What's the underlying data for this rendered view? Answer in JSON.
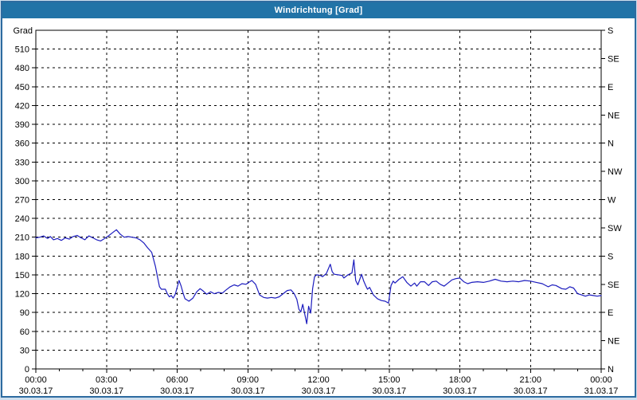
{
  "window": {
    "title": "Windrichtung [Grad]",
    "titlebar_color": "#2173a7",
    "border_color": "#2d6ba0"
  },
  "chart_data": {
    "type": "line",
    "title": "Windrichtung [Grad]",
    "grid": "dashed",
    "legend": "none",
    "y_left": {
      "label": "Grad",
      "min": 0,
      "max": 540,
      "tick_step": 30,
      "tick_labels": [
        "0",
        "30",
        "60",
        "90",
        "120",
        "150",
        "180",
        "210",
        "240",
        "270",
        "300",
        "330",
        "360",
        "390",
        "420",
        "450",
        "480",
        "510"
      ]
    },
    "y_right": {
      "tick_step": 45,
      "tick_labels_top_to_bottom": [
        "S",
        "SE",
        "E",
        "NE",
        "N",
        "NW",
        "W",
        "SW",
        "S",
        "SE",
        "E",
        "NE",
        "N"
      ]
    },
    "x": {
      "unit": "hours",
      "min": 0,
      "max": 24,
      "major_tick_step_hours": 3,
      "minor_tick_step_hours": 1,
      "tick_times": [
        "00:00",
        "03:00",
        "06:00",
        "09:00",
        "12:00",
        "15:00",
        "18:00",
        "21:00",
        "00:00"
      ],
      "tick_dates": [
        "30.03.17",
        "30.03.17",
        "30.03.17",
        "30.03.17",
        "30.03.17",
        "30.03.17",
        "30.03.17",
        "30.03.17",
        "31.03.17"
      ]
    },
    "series": [
      {
        "name": "Windrichtung",
        "color": "#1c1cbe",
        "points": [
          [
            0,
            209
          ],
          [
            0.17,
            210
          ],
          [
            0.33,
            212
          ],
          [
            0.5,
            208
          ],
          [
            0.62,
            211
          ],
          [
            0.75,
            206
          ],
          [
            0.92,
            208
          ],
          [
            1.08,
            205
          ],
          [
            1.25,
            209
          ],
          [
            1.42,
            207
          ],
          [
            1.58,
            211
          ],
          [
            1.75,
            213
          ],
          [
            1.92,
            209
          ],
          [
            2.08,
            206
          ],
          [
            2.25,
            212
          ],
          [
            2.42,
            209
          ],
          [
            2.58,
            206
          ],
          [
            2.75,
            204
          ],
          [
            2.92,
            208
          ],
          [
            3.08,
            212
          ],
          [
            3.25,
            217
          ],
          [
            3.42,
            222
          ],
          [
            3.58,
            215
          ],
          [
            3.75,
            210
          ],
          [
            3.92,
            211
          ],
          [
            4.08,
            210
          ],
          [
            4.25,
            209
          ],
          [
            4.42,
            206
          ],
          [
            4.58,
            201
          ],
          [
            4.75,
            193
          ],
          [
            4.92,
            186
          ],
          [
            5.08,
            163
          ],
          [
            5.17,
            146
          ],
          [
            5.25,
            131
          ],
          [
            5.33,
            127
          ],
          [
            5.5,
            127
          ],
          [
            5.58,
            120
          ],
          [
            5.67,
            115
          ],
          [
            5.75,
            117
          ],
          [
            5.83,
            113
          ],
          [
            5.92,
            119
          ],
          [
            6.0,
            130
          ],
          [
            6.08,
            141
          ],
          [
            6.17,
            132
          ],
          [
            6.25,
            121
          ],
          [
            6.33,
            112
          ],
          [
            6.5,
            108
          ],
          [
            6.67,
            113
          ],
          [
            6.83,
            123
          ],
          [
            6.97,
            128
          ],
          [
            7.08,
            125
          ],
          [
            7.25,
            119
          ],
          [
            7.42,
            123
          ],
          [
            7.58,
            120
          ],
          [
            7.75,
            122
          ],
          [
            7.92,
            121
          ],
          [
            8.08,
            126
          ],
          [
            8.25,
            131
          ],
          [
            8.42,
            134
          ],
          [
            8.58,
            132
          ],
          [
            8.75,
            136
          ],
          [
            8.92,
            135
          ],
          [
            9.08,
            139
          ],
          [
            9.17,
            141
          ],
          [
            9.33,
            135
          ],
          [
            9.5,
            118
          ],
          [
            9.67,
            114
          ],
          [
            9.83,
            113
          ],
          [
            10.0,
            114
          ],
          [
            10.17,
            113
          ],
          [
            10.33,
            115
          ],
          [
            10.5,
            120
          ],
          [
            10.67,
            125
          ],
          [
            10.83,
            126
          ],
          [
            10.97,
            120
          ],
          [
            11.08,
            111
          ],
          [
            11.17,
            95
          ],
          [
            11.25,
            91
          ],
          [
            11.33,
            103
          ],
          [
            11.42,
            87
          ],
          [
            11.5,
            72
          ],
          [
            11.58,
            100
          ],
          [
            11.67,
            89
          ],
          [
            11.75,
            128
          ],
          [
            11.83,
            147
          ],
          [
            11.92,
            150
          ],
          [
            12.08,
            149
          ],
          [
            12.17,
            147
          ],
          [
            12.33,
            152
          ],
          [
            12.5,
            167
          ],
          [
            12.58,
            155
          ],
          [
            12.67,
            151
          ],
          [
            12.83,
            150
          ],
          [
            13.0,
            149
          ],
          [
            13.08,
            145
          ],
          [
            13.25,
            150
          ],
          [
            13.42,
            153
          ],
          [
            13.5,
            174
          ],
          [
            13.58,
            141
          ],
          [
            13.67,
            134
          ],
          [
            13.83,
            151
          ],
          [
            13.92,
            140
          ],
          [
            14.0,
            133
          ],
          [
            14.08,
            127
          ],
          [
            14.17,
            130
          ],
          [
            14.33,
            118
          ],
          [
            14.5,
            112
          ],
          [
            14.67,
            109
          ],
          [
            14.83,
            108
          ],
          [
            14.97,
            105
          ],
          [
            15.08,
            133
          ],
          [
            15.17,
            140
          ],
          [
            15.25,
            137
          ],
          [
            15.42,
            143
          ],
          [
            15.58,
            147
          ],
          [
            15.75,
            138
          ],
          [
            15.92,
            132
          ],
          [
            16.08,
            137
          ],
          [
            16.17,
            132
          ],
          [
            16.33,
            139
          ],
          [
            16.5,
            139
          ],
          [
            16.67,
            133
          ],
          [
            16.83,
            139
          ],
          [
            17.0,
            140
          ],
          [
            17.17,
            135
          ],
          [
            17.33,
            132
          ],
          [
            17.5,
            137
          ],
          [
            17.67,
            142
          ],
          [
            17.83,
            144
          ],
          [
            18.0,
            145
          ],
          [
            18.17,
            139
          ],
          [
            18.33,
            136
          ],
          [
            18.5,
            138
          ],
          [
            18.75,
            139
          ],
          [
            19.0,
            138
          ],
          [
            19.25,
            140
          ],
          [
            19.5,
            143
          ],
          [
            19.75,
            140
          ],
          [
            20.0,
            139
          ],
          [
            20.25,
            140
          ],
          [
            20.5,
            139
          ],
          [
            20.75,
            141
          ],
          [
            21.0,
            140
          ],
          [
            21.25,
            138
          ],
          [
            21.5,
            136
          ],
          [
            21.75,
            131
          ],
          [
            21.92,
            134
          ],
          [
            22.08,
            133
          ],
          [
            22.33,
            128
          ],
          [
            22.5,
            127
          ],
          [
            22.67,
            131
          ],
          [
            22.83,
            129
          ],
          [
            23.0,
            120
          ],
          [
            23.17,
            118
          ],
          [
            23.33,
            116
          ],
          [
            23.5,
            118
          ],
          [
            23.67,
            117
          ],
          [
            23.83,
            116
          ],
          [
            24.0,
            117
          ]
        ]
      }
    ]
  }
}
